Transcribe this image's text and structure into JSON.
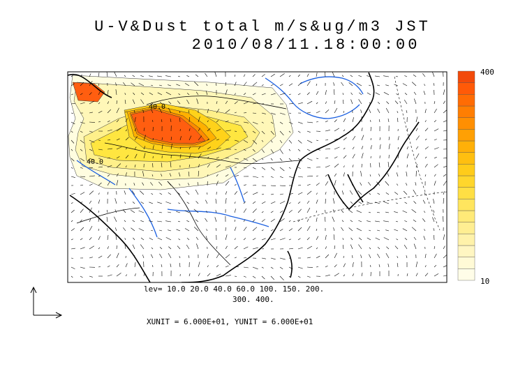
{
  "title": {
    "line1": "U-V&Dust total m/s&ug/m3 JST",
    "line2": "2010/08/11.18:00:00"
  },
  "map": {
    "contour_labels": [
      "40.0",
      "40.0"
    ],
    "ocean_color": "#ffffff",
    "dust_colors": [
      "#fffde0",
      "#fff7b8",
      "#fff08a",
      "#ffe640",
      "#ffd21a",
      "#ffb000",
      "#ff8a00",
      "#ff5e10"
    ],
    "river_color": "#1a5fe0",
    "wind_vector_color": "#000000"
  },
  "colorbar": {
    "max_label": "400",
    "min_label": "10",
    "colors": [
      "#fffde8",
      "#fffad6",
      "#fff6c2",
      "#fff2aa",
      "#ffee92",
      "#ffea78",
      "#ffe55e",
      "#ffdf44",
      "#ffd62c",
      "#ffcc1a",
      "#ffbf10",
      "#ffb008",
      "#ffa004",
      "#ff8f02",
      "#ff7e02",
      "#ff6c04",
      "#ff5a08",
      "#f24a0a"
    ]
  },
  "levels_line1": "lev= 10.0 20.0 40.0 60.0 100. 150. 200.",
  "levels_line2": "300. 400.",
  "units_text": "XUNIT = 6.000E+01, YUNIT = 6.000E+01"
}
